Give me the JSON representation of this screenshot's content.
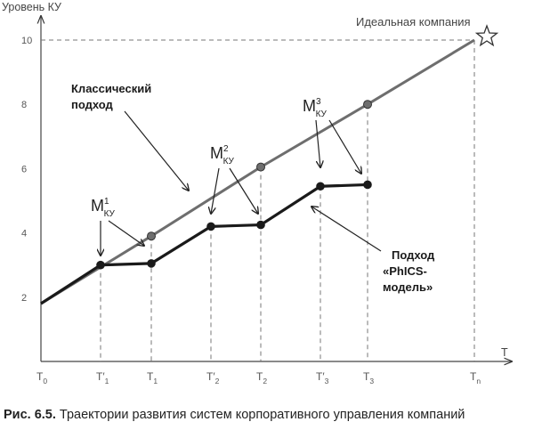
{
  "chart_data": {
    "type": "line",
    "ylabel": "Уровень КУ",
    "xlabel": "T",
    "ylim": [
      0,
      11
    ],
    "yticks": [
      2,
      4,
      6,
      8,
      10
    ],
    "grid": false,
    "x_ticks": [
      {
        "base": "T",
        "sub": "0",
        "prime": ""
      },
      {
        "base": "T",
        "sub": "1",
        "prime": "′"
      },
      {
        "base": "T",
        "sub": "1",
        "prime": ""
      },
      {
        "base": "T",
        "sub": "2",
        "prime": "′"
      },
      {
        "base": "T",
        "sub": "2",
        "prime": ""
      },
      {
        "base": "T",
        "sub": "3",
        "prime": "′"
      },
      {
        "base": "T",
        "sub": "3",
        "prime": ""
      },
      {
        "base": "T",
        "sub": "n",
        "prime": ""
      }
    ],
    "series": [
      {
        "name": "Классический подход",
        "label_lines": [
          "Классический",
          "подход"
        ],
        "color": "#6e6e6e",
        "points": [
          {
            "x": 0,
            "y": 1.8
          },
          {
            "x": 2,
            "y": 3.9
          },
          {
            "x": 4,
            "y": 6.05
          },
          {
            "x": 6,
            "y": 8.0
          },
          {
            "x": 7,
            "y": 10.0
          }
        ]
      },
      {
        "name": "Подход «PhICS-модель»",
        "label_lines": [
          "Подход",
          "«PhICS-",
          "модель»"
        ],
        "color": "#1a1a1a",
        "points": [
          {
            "x": 0,
            "y": 1.8
          },
          {
            "x": 1,
            "y": 3.0
          },
          {
            "x": 2,
            "y": 3.05
          },
          {
            "x": 3,
            "y": 4.2
          },
          {
            "x": 4,
            "y": 4.25
          },
          {
            "x": 5,
            "y": 5.45
          },
          {
            "x": 6,
            "y": 5.5
          }
        ]
      }
    ],
    "annotations": {
      "ideal": "Идеальная компания",
      "m_labels": [
        {
          "base": "M",
          "sup": "1",
          "sub": "КУ"
        },
        {
          "base": "M",
          "sup": "2",
          "sub": "КУ"
        },
        {
          "base": "M",
          "sup": "3",
          "sub": "КУ"
        }
      ]
    }
  },
  "caption": {
    "label": "Рис. 6.5.",
    "text": " Траектории развития систем корпоративного управления компаний"
  }
}
